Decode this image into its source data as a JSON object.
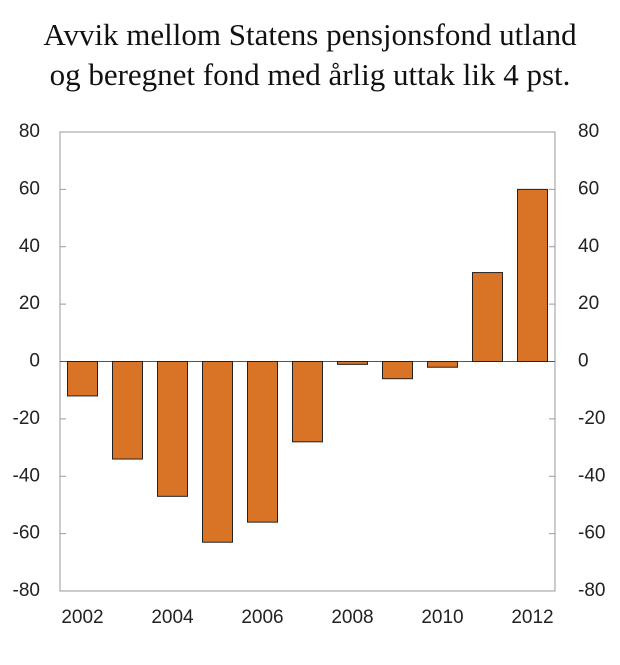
{
  "chart_data": {
    "type": "bar",
    "title": [
      "Avvik mellom Statens pensjonsfond utland",
      "og beregnet fond med årlig uttak lik 4 pst."
    ],
    "categories": [
      "2002",
      null,
      "2004",
      null,
      "2006",
      null,
      "2008",
      null,
      "2010",
      null,
      "2012"
    ],
    "values": [
      -12,
      -34,
      -47,
      -63,
      -56,
      -28,
      -1,
      -6,
      -2,
      31,
      60
    ],
    "color": "#d97326",
    "ylim": [
      -80,
      80
    ],
    "yticks": [
      -80,
      -60,
      -40,
      -20,
      0,
      20,
      40,
      60,
      80
    ],
    "y2lim": [
      -80,
      80
    ],
    "y2ticks": [
      -80,
      -60,
      -40,
      -20,
      0,
      20,
      40,
      60,
      80
    ]
  }
}
